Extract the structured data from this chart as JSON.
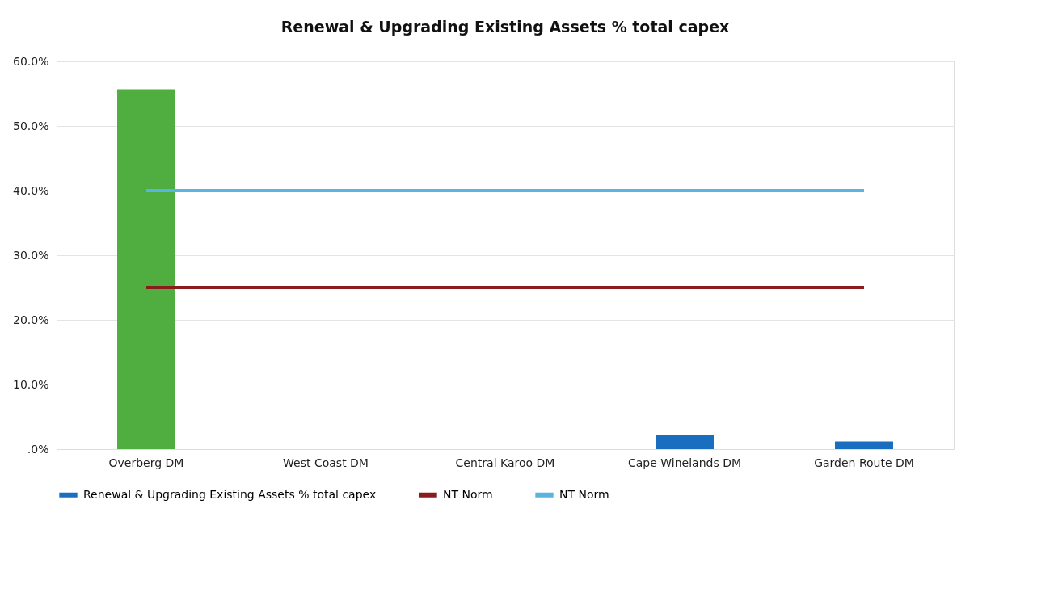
{
  "chart_data": {
    "type": "bar",
    "title": "Renewal & Upgrading Existing Assets % total capex",
    "categories": [
      "Overberg DM",
      "West Coast DM",
      "Central Karoo DM",
      "Cape Winelands DM",
      "Garden Route DM"
    ],
    "series": [
      {
        "name": "Renewal & Upgrading Existing Assets % total capex",
        "color": "#1a6ec0",
        "colors": [
          "#4fae3f",
          "#1a6ec0",
          "#1a6ec0",
          "#1a6ec0",
          "#1a6ec0"
        ],
        "values": [
          55.7,
          null,
          null,
          2.2,
          1.2
        ]
      },
      {
        "name": "NT Norm",
        "type": "line",
        "color": "#8b1c1c",
        "values": [
          25,
          25,
          25,
          25,
          25
        ]
      },
      {
        "name": "NT Norm",
        "type": "line",
        "color": "#5ab4e0",
        "values": [
          40,
          40,
          40,
          40,
          40
        ]
      }
    ],
    "ylim": [
      0,
      60
    ],
    "yticks": [
      {
        "value": 0,
        "label": ".0%"
      },
      {
        "value": 10,
        "label": "10.0%"
      },
      {
        "value": 20,
        "label": "20.0%"
      },
      {
        "value": 30,
        "label": "30.0%"
      },
      {
        "value": 40,
        "label": "40.0%"
      },
      {
        "value": 50,
        "label": "50.0%"
      },
      {
        "value": 60,
        "label": "60.0%"
      }
    ],
    "grid": "y",
    "legend": "bottom"
  }
}
